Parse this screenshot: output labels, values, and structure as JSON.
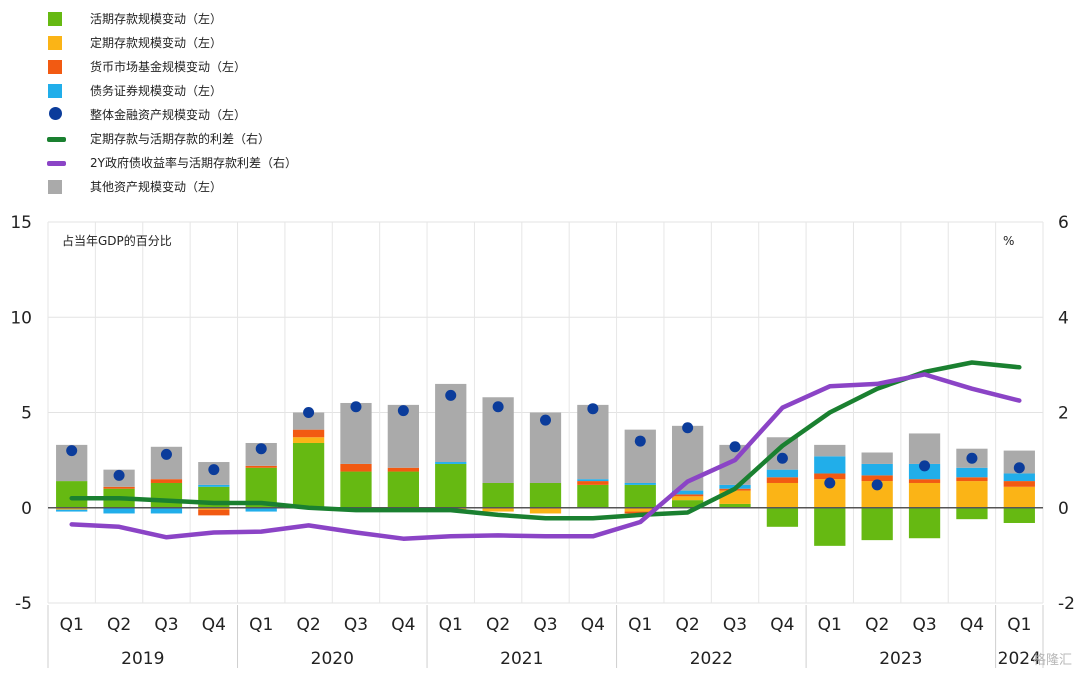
{
  "legend": [
    {
      "label": "活期存款规模变动（左）",
      "color": "#66b912",
      "shape": "square"
    },
    {
      "label": "定期存款规模变动（左）",
      "color": "#fbb416",
      "shape": "square"
    },
    {
      "label": "货币市场基金规模变动（左）",
      "color": "#f25a12",
      "shape": "square"
    },
    {
      "label": "债务证券规模变动（左）",
      "color": "#21aeea",
      "shape": "square"
    },
    {
      "label": "整体金融资产规模变动（左）",
      "color": "#0b3c9b",
      "shape": "dot"
    },
    {
      "label": "定期存款与活期存款的利差（右）",
      "color": "#1a8030",
      "shape": "line"
    },
    {
      "label": "2Y政府债收益率与活期存款利差（右）",
      "color": "#8b44c6",
      "shape": "line"
    },
    {
      "label": "其他资产规模变动（左）",
      "color": "#aaaaaa",
      "shape": "square"
    }
  ],
  "watermark": "格隆汇",
  "chart_data": {
    "type": "bar",
    "left_axis_note": "占当年GDP的百分比",
    "right_axis_note": "%",
    "ylim_left": [
      -5,
      15
    ],
    "yticks_left": [
      "-5",
      "0",
      "5",
      "10",
      "15"
    ],
    "ylim_right": [
      -2,
      6
    ],
    "yticks_right": [
      "-2",
      "0",
      "2",
      "4",
      "6"
    ],
    "grid": true,
    "categories": [
      "Q1",
      "Q2",
      "Q3",
      "Q4",
      "Q1",
      "Q2",
      "Q3",
      "Q4",
      "Q1",
      "Q2",
      "Q3",
      "Q4",
      "Q1",
      "Q2",
      "Q3",
      "Q4",
      "Q1",
      "Q2",
      "Q3",
      "Q4",
      "Q1"
    ],
    "years": [
      {
        "label": "2019",
        "quarters": 4
      },
      {
        "label": "2020",
        "quarters": 4
      },
      {
        "label": "2021",
        "quarters": 4
      },
      {
        "label": "2022",
        "quarters": 4
      },
      {
        "label": "2023",
        "quarters": 4
      },
      {
        "label": "2024",
        "quarters": 1
      }
    ],
    "bar_series": [
      {
        "name": "活期存款规模变动（左）",
        "color": "#66b912",
        "values": [
          1.4,
          1.0,
          1.3,
          1.1,
          2.1,
          3.4,
          1.9,
          1.9,
          2.3,
          1.3,
          1.3,
          1.2,
          1.2,
          0.4,
          0.2,
          -1.0,
          -2.0,
          -1.7,
          -1.6,
          -0.6,
          -0.8
        ]
      },
      {
        "name": "定期存款规模变动（左）",
        "color": "#fbb416",
        "values": [
          -0.1,
          0.0,
          0.0,
          -0.1,
          0.0,
          0.3,
          0.0,
          0.0,
          -0.1,
          -0.2,
          -0.3,
          0.0,
          -0.2,
          0.2,
          0.7,
          1.3,
          1.5,
          1.4,
          1.3,
          1.4,
          1.1
        ]
      },
      {
        "name": "货币市场基金规模变动（左）",
        "color": "#f25a12",
        "values": [
          0.0,
          0.1,
          0.2,
          -0.3,
          0.1,
          0.4,
          0.4,
          0.2,
          0.0,
          0.0,
          0.0,
          0.2,
          -0.1,
          0.1,
          0.1,
          0.3,
          0.3,
          0.3,
          0.2,
          0.2,
          0.3
        ]
      },
      {
        "name": "债务证券规模变动（左）",
        "color": "#21aeea",
        "values": [
          -0.1,
          -0.3,
          -0.3,
          0.1,
          -0.2,
          0.0,
          0.0,
          0.0,
          0.1,
          0.0,
          0.0,
          0.1,
          0.1,
          0.2,
          0.2,
          0.4,
          0.9,
          0.6,
          0.8,
          0.5,
          0.4
        ]
      },
      {
        "name": "其他资产规模变动（左）",
        "color": "#aaaaaa",
        "values": [
          1.9,
          0.9,
          1.7,
          1.2,
          1.2,
          0.9,
          3.2,
          3.3,
          4.1,
          4.5,
          3.7,
          3.9,
          2.8,
          3.4,
          2.1,
          1.7,
          0.6,
          0.6,
          1.6,
          1.0,
          1.2
        ]
      }
    ],
    "dot_series": {
      "name": "整体金融资产规模变动（左）",
      "color": "#0b3c9b",
      "values": [
        3.0,
        1.7,
        2.8,
        2.0,
        3.1,
        5.0,
        5.3,
        5.1,
        5.9,
        5.3,
        4.6,
        5.2,
        3.5,
        4.2,
        3.2,
        2.6,
        1.3,
        1.2,
        2.2,
        2.6,
        2.1
      ]
    },
    "line_series": [
      {
        "name": "定期存款与活期存款的利差（右）",
        "color": "#1a8030",
        "values": [
          0.2,
          0.2,
          0.15,
          0.1,
          0.1,
          0.0,
          -0.05,
          -0.05,
          -0.05,
          -0.15,
          -0.22,
          -0.22,
          -0.15,
          -0.1,
          0.4,
          1.3,
          2.0,
          2.5,
          2.85,
          3.05,
          2.95
        ]
      },
      {
        "name": "2Y政府债收益率与活期存款利差（右）",
        "color": "#8b44c6",
        "values": [
          -0.35,
          -0.4,
          -0.62,
          -0.52,
          -0.5,
          -0.37,
          -0.52,
          -0.65,
          -0.6,
          -0.58,
          -0.6,
          -0.6,
          -0.3,
          0.55,
          1.0,
          2.1,
          2.55,
          2.6,
          2.8,
          2.5,
          2.25
        ]
      }
    ]
  }
}
